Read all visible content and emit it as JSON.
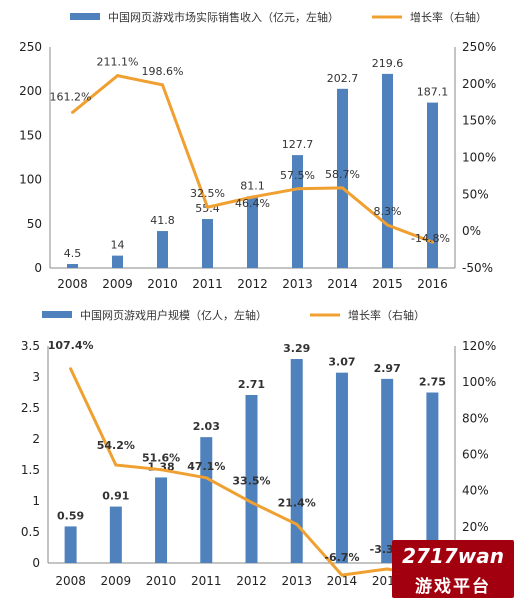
{
  "colors": {
    "bar": "#4f81bd",
    "line": "#f0a030",
    "axis": "#888888",
    "text": "#222222",
    "watermark_bg": "#a3000f"
  },
  "chart_data": [
    {
      "type": "bar+line",
      "title": "",
      "categories": [
        "2008",
        "2009",
        "2010",
        "2011",
        "2012",
        "2013",
        "2014",
        "2015",
        "2016"
      ],
      "series": [
        {
          "name": "中国网页游戏市场实际销售收入（亿元，左轴）",
          "type": "bar",
          "axis": "left",
          "values": [
            4.5,
            14,
            41.8,
            55.4,
            81.1,
            127.7,
            202.7,
            219.6,
            187.1
          ],
          "labels": [
            "4.5",
            "14",
            "41.8",
            "55.4",
            "81.1",
            "127.7",
            "202.7",
            "219.6",
            "187.1"
          ]
        },
        {
          "name": "增长率（右轴）",
          "type": "line",
          "axis": "right",
          "values": [
            161.2,
            211.1,
            198.6,
            32.5,
            46.4,
            57.5,
            58.7,
            8.3,
            -14.8
          ],
          "labels": [
            "161.2%",
            "211.1%",
            "198.6%",
            "32.5%",
            "46.4%",
            "57.5%",
            "58.7%",
            "8.3%",
            "-14.8%"
          ]
        }
      ],
      "y_left": {
        "lim": [
          0,
          250
        ],
        "ticks": [
          "0",
          "50",
          "100",
          "150",
          "200",
          "250"
        ]
      },
      "y_right": {
        "lim": [
          -50,
          250
        ],
        "ticks": [
          "-50%",
          "0%",
          "50%",
          "100%",
          "150%",
          "200%",
          "250%"
        ]
      },
      "legend": "top"
    },
    {
      "type": "bar+line",
      "title": "",
      "categories": [
        "2008",
        "2009",
        "2010",
        "2011",
        "2012",
        "2013",
        "2014",
        "2015",
        "2016"
      ],
      "series": [
        {
          "name": "中国网页游戏用户规模（亿人，左轴）",
          "type": "bar",
          "axis": "left",
          "values": [
            0.59,
            0.91,
            1.38,
            2.03,
            2.71,
            3.29,
            3.07,
            2.97,
            2.75
          ],
          "labels": [
            "0.59",
            "0.91",
            "1.38",
            "2.03",
            "2.71",
            "3.29",
            "3.07",
            "2.97",
            "2.75"
          ]
        },
        {
          "name": "增长率（右轴）",
          "type": "line",
          "axis": "right",
          "values": [
            107.4,
            54.2,
            51.6,
            47.1,
            33.5,
            21.4,
            -6.7,
            -3.3,
            -7.4
          ],
          "labels": [
            "107.4%",
            "54.2%",
            "51.6%",
            "47.1%",
            "33.5%",
            "21.4%",
            "-6.7%",
            "-3.3%",
            "-7.4%"
          ]
        }
      ],
      "y_left": {
        "lim": [
          0,
          3.5
        ],
        "ticks": [
          "0",
          "0.5",
          "1",
          "1.5",
          "2",
          "2.5",
          "3",
          "3.5"
        ]
      },
      "y_right": {
        "lim": [
          0,
          120
        ],
        "ticks": [
          "0%",
          "20%",
          "40%",
          "60%",
          "80%",
          "100%",
          "120%"
        ]
      },
      "legend": "top"
    }
  ],
  "watermark": {
    "line1": "2717wan",
    "line2": "游戏平台"
  }
}
